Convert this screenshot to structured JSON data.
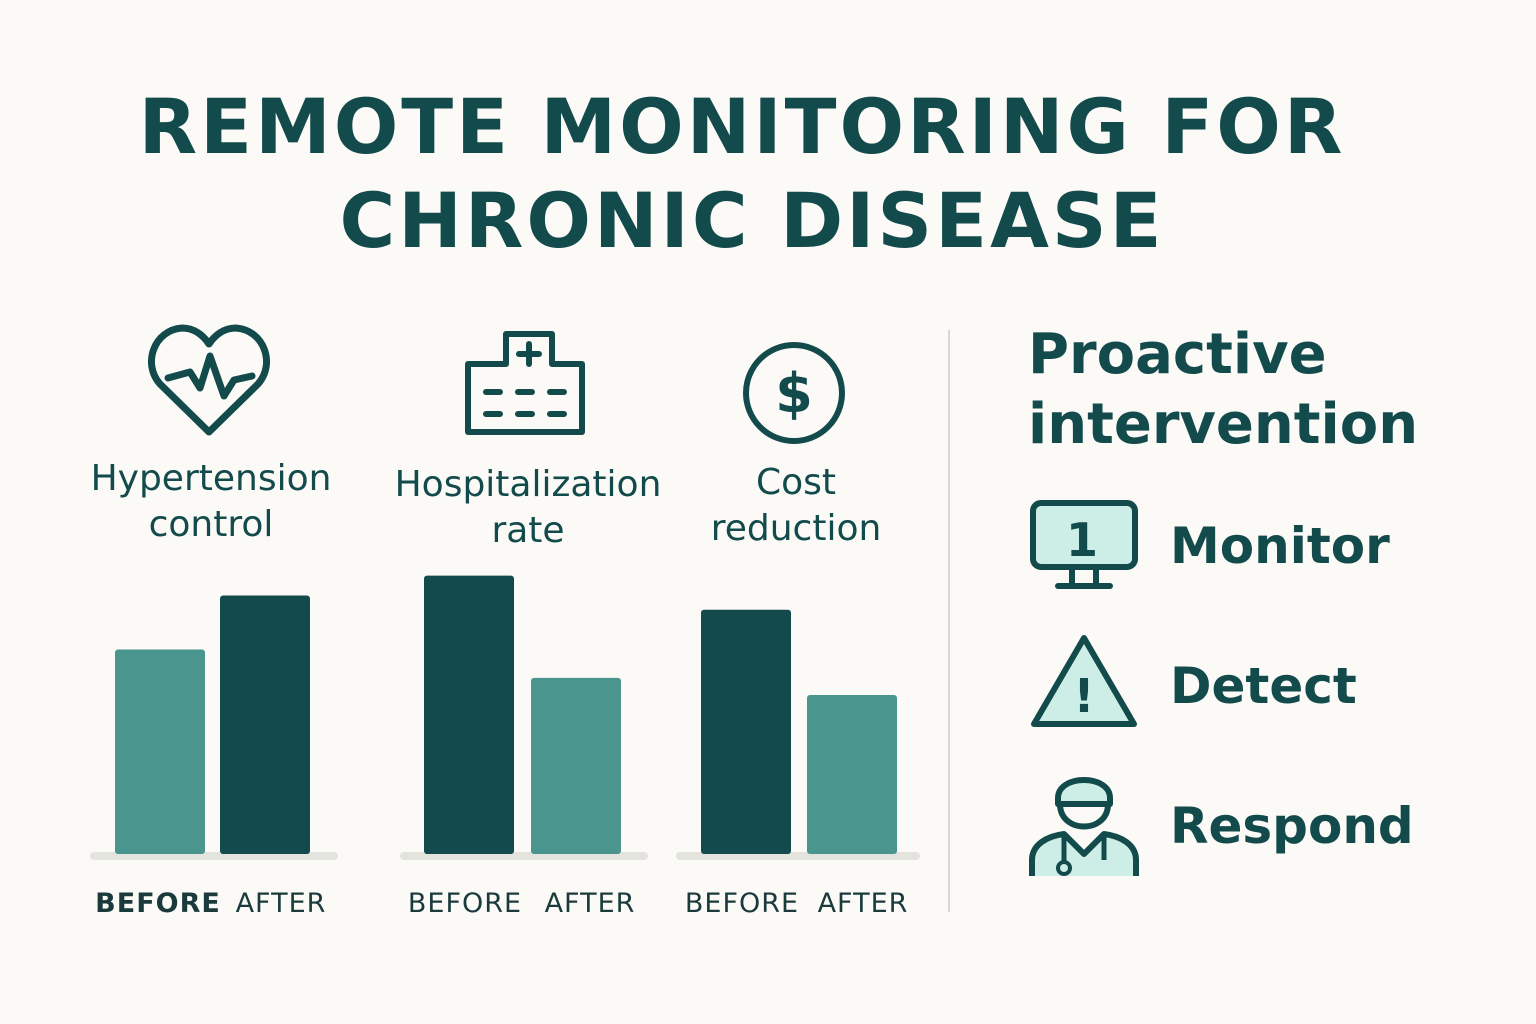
{
  "title": {
    "line1": "REMOTE MONITORING FOR",
    "line2": "CHRONIC DISEASE"
  },
  "colors": {
    "dark": "#134a4c",
    "light": "#4b958f",
    "mint": "#cdeee6",
    "background": "#fbfaf6"
  },
  "chart_data": {
    "type": "bar",
    "title": "REMOTE MONITORING FOR CHRONIC DISEASE",
    "ylim": [
      0,
      100
    ],
    "xlabel": "",
    "ylabel": "",
    "groups": [
      {
        "name": "Hypertension control",
        "icon": "heart-pulse-icon",
        "categories": [
          "BEFORE",
          "AFTER"
        ],
        "values": [
          72,
          91
        ]
      },
      {
        "name": "Hospitalization rate",
        "icon": "hospital-icon",
        "categories": [
          "BEFORE",
          "AFTER"
        ],
        "values": [
          98,
          62
        ]
      },
      {
        "name": "Cost reduction",
        "icon": "dollar-icon",
        "categories": [
          "BEFORE",
          "AFTER"
        ],
        "values": [
          86,
          56
        ]
      }
    ]
  },
  "metrics": {
    "hypertension": {
      "line1": "Hypertension",
      "line2": "control"
    },
    "hospitalization": {
      "line1": "Hospitalization",
      "line2": "rate"
    },
    "cost": {
      "line1": "Cost",
      "line2": "reduction"
    }
  },
  "panel": {
    "title_line1": "Proactive",
    "title_line2": "intervention",
    "steps": [
      {
        "label": "Monitor",
        "icon": "monitor-icon",
        "icon_text": "1"
      },
      {
        "label": "Detect",
        "icon": "warning-icon",
        "icon_text": "!"
      },
      {
        "label": "Respond",
        "icon": "doctor-icon"
      }
    ]
  }
}
